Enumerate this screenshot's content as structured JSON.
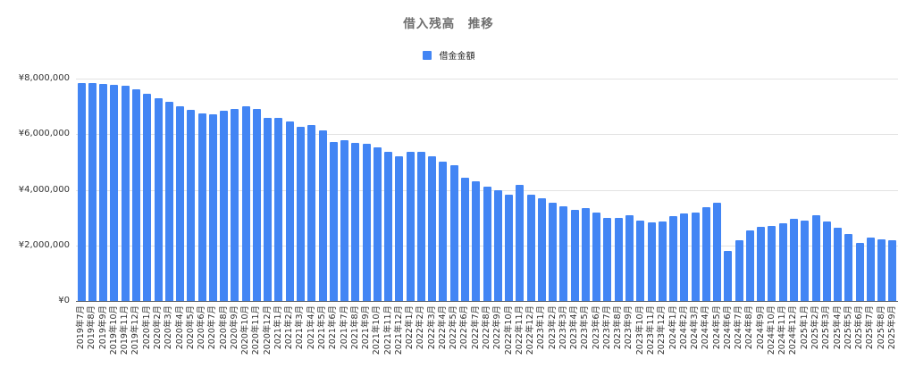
{
  "chart_data": {
    "type": "bar",
    "title": "借入残高　推移",
    "series_name": "借金金額",
    "bar_color": "#4285f4",
    "grid": "horizontal-only",
    "legend_position": "top-center",
    "ylim": [
      0,
      8000000
    ],
    "ytick_values": [
      0,
      2000000,
      4000000,
      6000000,
      8000000
    ],
    "ytick_labels": [
      "¥0",
      "¥2,000,000",
      "¥4,000,000",
      "¥6,000,000",
      "¥8,000,000"
    ],
    "categories": [
      "2019年7月",
      "2019年8月",
      "2019年9月",
      "2019年10月",
      "2019年11月",
      "2019年12月",
      "2020年1月",
      "2020年2月",
      "2020年3月",
      "2020年4月",
      "2020年5月",
      "2020年6月",
      "2020年7月",
      "2020年8月",
      "2020年9月",
      "2020年10月",
      "2020年11月",
      "2020年12月",
      "2021年1月",
      "2021年2月",
      "2021年3月",
      "2021年4月",
      "2021年5月",
      "2021年6月",
      "2021年7月",
      "2021年8月",
      "2021年9月",
      "2021年10月",
      "2021年11月",
      "2021年12月",
      "2022年1月",
      "2022年2月",
      "2022年3月",
      "2022年4月",
      "2022年5月",
      "2022年6月",
      "2022年7月",
      "2022年8月",
      "2022年9月",
      "2022年10月",
      "2022年11月",
      "2022年12月",
      "2023年1月",
      "2023年2月",
      "2023年3月",
      "2023年4月",
      "2023年5月",
      "2023年6月",
      "2023年7月",
      "2023年8月",
      "2023年9月",
      "2023年10月",
      "2023年11月",
      "2023年12月",
      "2024年1月",
      "2024年2月",
      "2024年3月",
      "2024年4月",
      "2024年5月",
      "2024年6月",
      "2024年7月",
      "2024年8月",
      "2024年9月",
      "2024年10月",
      "2024年11月",
      "2024年12月",
      "2025年1月",
      "2025年2月",
      "2025年3月",
      "2025年4月",
      "2025年5月",
      "2025年6月",
      "2025年7月",
      "2025年8月",
      "2025年9月"
    ],
    "values": [
      7850000,
      7830000,
      7800000,
      7780000,
      7750000,
      7600000,
      7450000,
      7300000,
      7150000,
      7000000,
      6870000,
      6750000,
      6700000,
      6850000,
      6900000,
      7000000,
      6900000,
      6600000,
      6580000,
      6450000,
      6280000,
      6320000,
      6140000,
      5710000,
      5780000,
      5700000,
      5670000,
      5520000,
      5380000,
      5220000,
      5350000,
      5370000,
      5190000,
      5000000,
      4880000,
      4430000,
      4320000,
      4110000,
      3970000,
      3820000,
      4170000,
      3820000,
      3680000,
      3530000,
      3410000,
      3270000,
      3340000,
      3170000,
      3000000,
      3000000,
      3090000,
      2900000,
      2830000,
      2860000,
      3060000,
      3140000,
      3190000,
      3370000,
      3520000,
      1810000,
      2180000,
      2530000,
      2670000,
      2700000,
      2790000,
      2960000,
      2900000,
      3090000,
      2850000,
      2640000,
      2420000,
      2100000,
      2270000,
      2210000,
      2180000
    ]
  }
}
